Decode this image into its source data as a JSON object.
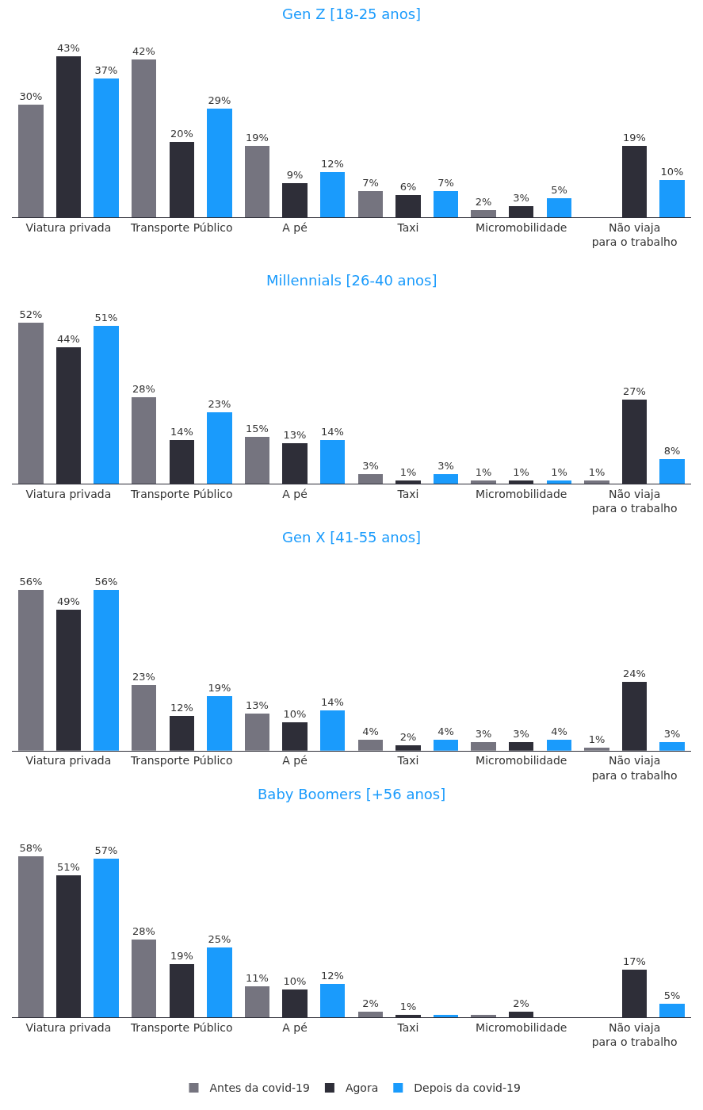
{
  "chart_data": [
    {
      "type": "bar",
      "title": "Gen Z [18-25 anos]",
      "legend": "bottom",
      "categories": [
        "Viatura privada",
        "Transporte Público",
        "A pé",
        "Taxi",
        "Micromobilidade",
        "Não viaja para o trabalho"
      ],
      "series": [
        {
          "name": "Antes da covid-19",
          "color": "#75747f",
          "values": [
            30,
            42,
            19,
            7,
            2,
            null
          ],
          "value_labels": [
            "30%",
            "42%",
            "19%",
            "7%",
            "2%",
            null
          ]
        },
        {
          "name": "Agora",
          "color": "#2e2e38",
          "values": [
            43,
            20,
            9,
            6,
            3,
            19
          ],
          "value_labels": [
            "43%",
            "20%",
            "9%",
            "6%",
            "3%",
            "19%"
          ]
        },
        {
          "name": "Depois da covid-19",
          "color": "#1a9bfc",
          "values": [
            37,
            29,
            12,
            7,
            5,
            10
          ],
          "value_labels": [
            "37%",
            "29%",
            "12%",
            "7%",
            "5%",
            "10%"
          ]
        }
      ]
    },
    {
      "type": "bar",
      "title": "Millennials [26-40 anos]",
      "categories": [
        "Viatura privada",
        "Transporte Público",
        "A pé",
        "Taxi",
        "Micromobilidade",
        "Não viaja para o trabalho"
      ],
      "series": [
        {
          "color": "#75747f",
          "values": [
            52,
            28,
            15,
            3,
            1,
            1
          ],
          "value_labels": [
            "52%",
            "28%",
            "15%",
            "3%",
            "1%",
            "1%"
          ]
        },
        {
          "color": "#2e2e38",
          "values": [
            44,
            14,
            13,
            1,
            1,
            27
          ],
          "value_labels": [
            "44%",
            "14%",
            "13%",
            "1%",
            "1%",
            "27%"
          ]
        },
        {
          "color": "#1a9bfc",
          "values": [
            51,
            23,
            14,
            3,
            1,
            8
          ],
          "value_labels": [
            "51%",
            "23%",
            "14%",
            "3%",
            "1%",
            "8%"
          ]
        }
      ]
    },
    {
      "type": "bar",
      "title": "Gen X [41-55 anos]",
      "categories": [
        "Viatura privada",
        "Transporte Público",
        "A pé",
        "Taxi",
        "Micromobilidade",
        "Não viaja para o trabalho"
      ],
      "series": [
        {
          "color": "#75747f",
          "values": [
            56,
            23,
            13,
            4,
            3,
            1
          ],
          "value_labels": [
            "56%",
            "23%",
            "13%",
            "4%",
            "3%",
            "1%"
          ]
        },
        {
          "color": "#2e2e38",
          "values": [
            49,
            12,
            10,
            2,
            3,
            24
          ],
          "value_labels": [
            "49%",
            "12%",
            "10%",
            "2%",
            "3%",
            "24%"
          ]
        },
        {
          "color": "#1a9bfc",
          "values": [
            56,
            19,
            14,
            4,
            4,
            3
          ],
          "value_labels": [
            "56%",
            "19%",
            "14%",
            "4%",
            "4%",
            "3%"
          ]
        }
      ]
    },
    {
      "type": "bar",
      "title": "Baby Boomers [+56 anos]",
      "categories": [
        "Viatura privada",
        "Transporte Público",
        "A pé",
        "Taxi",
        "Micromobilidade",
        "Não viaja para o trabalho"
      ],
      "series": [
        {
          "color": "#75747f",
          "values": [
            58,
            28,
            11,
            2,
            1,
            null
          ],
          "value_labels": [
            "58%",
            "28%",
            "11%",
            "2%",
            null,
            null
          ]
        },
        {
          "color": "#2e2e38",
          "values": [
            51,
            19,
            10,
            1,
            2,
            17
          ],
          "value_labels": [
            "51%",
            "19%",
            "10%",
            "1%",
            "2%",
            "17%"
          ]
        },
        {
          "color": "#1a9bfc",
          "values": [
            57,
            25,
            12,
            1,
            null,
            5
          ],
          "value_labels": [
            "57%",
            "25%",
            "12%",
            null,
            null,
            "5%"
          ]
        }
      ]
    }
  ]
}
